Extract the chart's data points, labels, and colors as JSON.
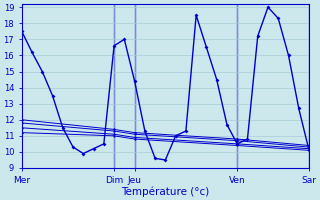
{
  "xlabel": "Température (°c)",
  "background_color": "#cce8ec",
  "grid_color": "#aaccd4",
  "line_color": "#0000cc",
  "vline_color": "#0000cc",
  "xlim": [
    0,
    28
  ],
  "ylim": [
    9,
    19.2
  ],
  "yticks": [
    9,
    10,
    11,
    12,
    13,
    14,
    15,
    16,
    17,
    18,
    19
  ],
  "xtick_positions": [
    0,
    9,
    11,
    21,
    28
  ],
  "xtick_labels": [
    "Mer",
    "Dim",
    "Jeu",
    "Ven",
    "Sar"
  ],
  "vline_positions": [
    9,
    11,
    21,
    28
  ],
  "series_main": {
    "x": [
      0,
      1,
      2,
      3,
      4,
      5,
      6,
      7,
      8,
      9,
      10,
      11,
      12,
      13,
      14,
      15,
      16,
      17,
      18,
      19,
      20,
      21,
      22,
      23,
      24,
      25,
      26,
      27,
      28
    ],
    "y": [
      17.5,
      16.2,
      15.0,
      13.5,
      11.5,
      10.3,
      9.9,
      10.2,
      10.5,
      16.6,
      17.0,
      14.4,
      11.3,
      9.6,
      9.5,
      11.0,
      11.3,
      18.5,
      16.5,
      14.5,
      11.7,
      10.5,
      10.8,
      17.2,
      19.0,
      18.3,
      16.0,
      12.7,
      10.1
    ]
  },
  "series_flat": [
    {
      "x": [
        0,
        9,
        11,
        21,
        28
      ],
      "y": [
        12.0,
        11.4,
        11.2,
        10.8,
        10.4
      ]
    },
    {
      "x": [
        0,
        9,
        11,
        21,
        28
      ],
      "y": [
        11.8,
        11.3,
        11.1,
        10.7,
        10.3
      ]
    },
    {
      "x": [
        0,
        9,
        11,
        21,
        28
      ],
      "y": [
        11.5,
        11.1,
        10.9,
        10.5,
        10.2
      ]
    },
    {
      "x": [
        0,
        9,
        11,
        21,
        28
      ],
      "y": [
        11.2,
        11.0,
        10.8,
        10.4,
        10.1
      ]
    }
  ]
}
